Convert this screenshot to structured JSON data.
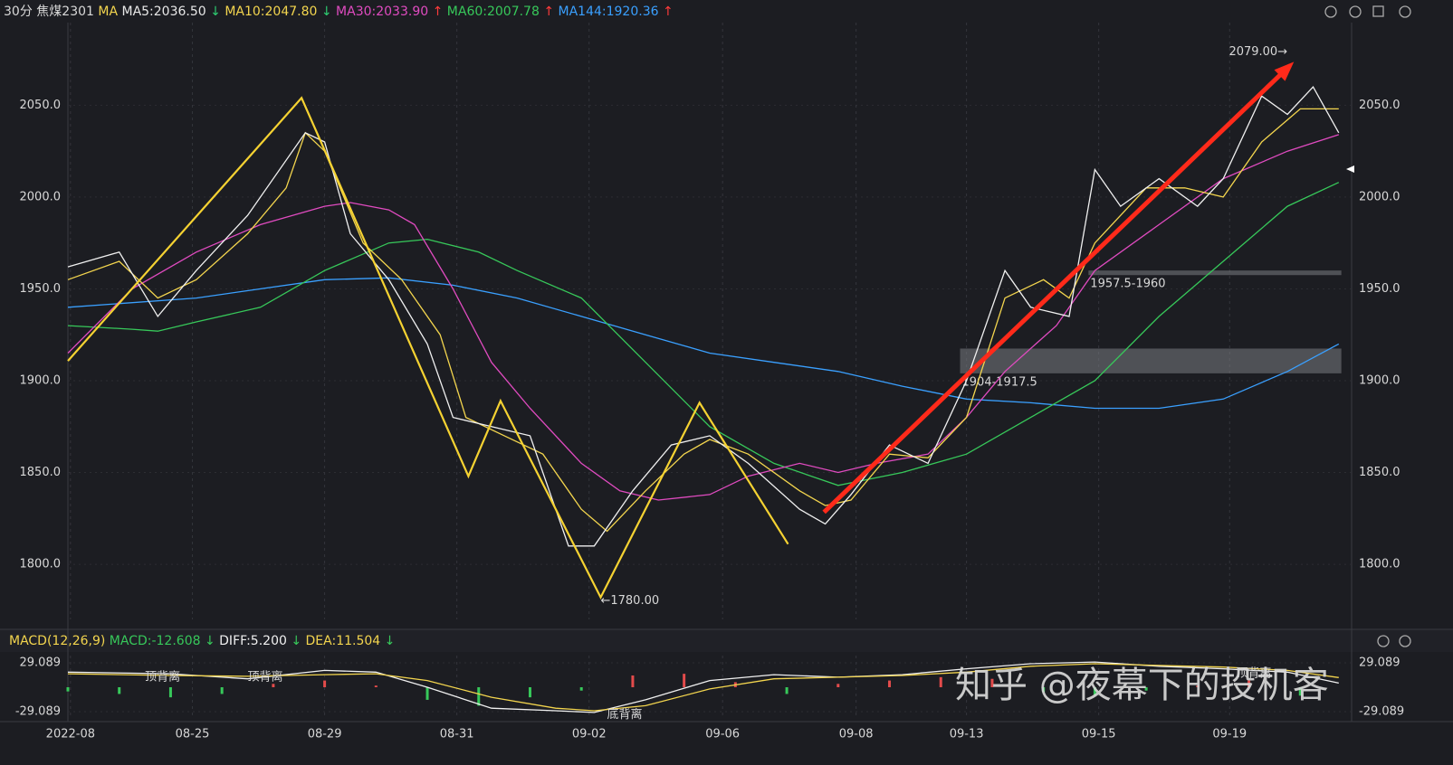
{
  "header": {
    "period": "30分",
    "symbol": "焦煤2301",
    "ma_label": "MA",
    "items": [
      {
        "label": "MA5:2036.50",
        "arrow": "↓",
        "color": "#e8e8e8",
        "arrow_color": "#2ecc71"
      },
      {
        "label": "MA10:2047.80",
        "arrow": "↓",
        "color": "#f3d54e",
        "arrow_color": "#2ecc71"
      },
      {
        "label": "MA30:2033.90",
        "arrow": "↑",
        "color": "#e04bc0",
        "arrow_color": "#ff3b3b"
      },
      {
        "label": "MA60:2007.78",
        "arrow": "↑",
        "color": "#37c85a",
        "arrow_color": "#ff3b3b"
      },
      {
        "label": "MA144:1920.36",
        "arrow": "↑",
        "color": "#3aa0ff",
        "arrow_color": "#ff3b3b"
      }
    ]
  },
  "watermark": "知乎 @夜幕下的投机客",
  "chart_data": [
    {
      "type": "line",
      "ylim": [
        1770,
        2095
      ],
      "xlim": [
        0,
        100
      ],
      "yticks": [
        {
          "value": 1800,
          "label": "1800.0"
        },
        {
          "value": 1850,
          "label": "1850.0"
        },
        {
          "value": 1900,
          "label": "1900.0"
        },
        {
          "value": 1950,
          "label": "1950.0"
        },
        {
          "value": 2000,
          "label": "2000.0"
        },
        {
          "value": 2050,
          "label": "2050.0"
        }
      ],
      "xticks": [
        {
          "value": 0.2,
          "label": "2022-08"
        },
        {
          "value": 9.7,
          "label": "08-25"
        },
        {
          "value": 20,
          "label": "08-29"
        },
        {
          "value": 30.3,
          "label": "08-31"
        },
        {
          "value": 40.6,
          "label": "09-02"
        },
        {
          "value": 51,
          "label": "09-06"
        },
        {
          "value": 61.4,
          "label": "09-08"
        },
        {
          "value": 70,
          "label": "09-13"
        },
        {
          "value": 80.3,
          "label": "09-15"
        },
        {
          "value": 90.5,
          "label": "09-19"
        }
      ],
      "series": [
        {
          "name": "MA144",
          "color": "#3aa0ff",
          "x": [
            0,
            10,
            20,
            25,
            30,
            35,
            40,
            45,
            50,
            55,
            60,
            65,
            70,
            75,
            80,
            85,
            90,
            95,
            99
          ],
          "values": [
            1940,
            1945,
            1955,
            1956,
            1952,
            1945,
            1935,
            1925,
            1915,
            1910,
            1905,
            1897,
            1890,
            1888,
            1885,
            1885,
            1890,
            1905,
            1920
          ]
        },
        {
          "name": "MA60",
          "color": "#37c85a",
          "x": [
            0,
            5,
            7,
            10,
            15,
            20,
            25,
            28,
            32,
            35,
            40,
            45,
            50,
            55,
            60,
            65,
            70,
            75,
            80,
            85,
            90,
            95,
            99
          ],
          "values": [
            1930,
            1928,
            1927,
            1932,
            1940,
            1960,
            1975,
            1977,
            1970,
            1960,
            1945,
            1910,
            1875,
            1855,
            1843,
            1850,
            1860,
            1880,
            1900,
            1935,
            1965,
            1995,
            2008
          ]
        },
        {
          "name": "MA30",
          "color": "#e04bc0",
          "x": [
            0,
            5,
            10,
            15,
            20,
            22,
            25,
            27,
            30,
            33,
            36,
            40,
            43,
            46,
            50,
            53,
            57,
            60,
            63,
            67,
            70,
            73,
            77,
            80,
            85,
            90,
            95,
            99
          ],
          "values": [
            1915,
            1950,
            1970,
            1985,
            1995,
            1997,
            1993,
            1985,
            1950,
            1910,
            1885,
            1855,
            1840,
            1835,
            1838,
            1848,
            1855,
            1850,
            1855,
            1860,
            1880,
            1905,
            1930,
            1960,
            1985,
            2010,
            2025,
            2034
          ]
        },
        {
          "name": "MA10",
          "color": "#f3d54e",
          "x": [
            0,
            4,
            7,
            10,
            14,
            17,
            18.5,
            20,
            23,
            26,
            29,
            31,
            34,
            37,
            40,
            42,
            45,
            48,
            50,
            53,
            57,
            59,
            61,
            64,
            67,
            70,
            73,
            76,
            78,
            80,
            84,
            87,
            90,
            93,
            96,
            99
          ],
          "values": [
            1955,
            1965,
            1945,
            1955,
            1980,
            2005,
            2035,
            2025,
            1975,
            1955,
            1925,
            1880,
            1870,
            1860,
            1830,
            1818,
            1840,
            1860,
            1868,
            1860,
            1840,
            1832,
            1835,
            1860,
            1858,
            1880,
            1945,
            1955,
            1945,
            1975,
            2005,
            2005,
            2000,
            2030,
            2048,
            2048
          ]
        },
        {
          "name": "MA5",
          "color": "#f0f0f0",
          "x": [
            0,
            4,
            7,
            10,
            14,
            18.5,
            20,
            22,
            25,
            28,
            30,
            33,
            36,
            39,
            41,
            44,
            47,
            50,
            53,
            57,
            59,
            61,
            64,
            67,
            70,
            73,
            75,
            78,
            80,
            82,
            85,
            88,
            90,
            93,
            95,
            97,
            99
          ],
          "values": [
            1962,
            1970,
            1935,
            1960,
            1990,
            2035,
            2030,
            1980,
            1955,
            1920,
            1880,
            1875,
            1870,
            1810,
            1810,
            1840,
            1865,
            1870,
            1855,
            1830,
            1822,
            1838,
            1865,
            1855,
            1900,
            1960,
            1940,
            1935,
            2015,
            1995,
            2010,
            1995,
            2010,
            2055,
            2045,
            2060,
            2035
          ]
        }
      ],
      "zigzag": {
        "color": "#f5d232",
        "x": [
          0,
          18.2,
          31.2,
          33.7,
          41.5,
          49.2,
          56.1
        ],
        "values": [
          1910.8,
          2054,
          1848,
          1889,
          1782,
          1888,
          1811
        ]
      },
      "arrow": {
        "color": "#ff2a1a",
        "x": [
          58.9,
          95.2
        ],
        "values": [
          1828.4,
          2071.6
        ]
      },
      "zones": [
        {
          "label": "1904-1917.5",
          "x": [
            69.5,
            99.2
          ],
          "values": [
            1904,
            1917.5
          ]
        },
        {
          "label": "1957.5-1960",
          "x": [
            79.5,
            99.2
          ],
          "values": [
            1957.5,
            1960
          ]
        }
      ],
      "annotations": [
        {
          "text": "2079.00→",
          "x": 95,
          "value": 2079
        },
        {
          "text": "←1780.00",
          "x": 41.5,
          "value": 1780
        }
      ]
    },
    {
      "type": "macd",
      "title": "MACD(12,26,9)",
      "macd_label": "MACD:-12.608",
      "macd_arrow": "↓",
      "diff_label": "DIFF:5.200",
      "diff_arrow": "↓",
      "dea_label": "DEA:11.504",
      "dea_arrow": "↓",
      "ylim": [
        -37.7,
        37.7
      ],
      "xlim": [
        0,
        100
      ],
      "yticks": [
        -29.089,
        29.089
      ],
      "histogram": {
        "x": [
          0,
          4,
          8,
          12,
          16,
          20,
          24,
          28,
          32,
          36,
          40,
          44,
          48,
          52,
          56,
          60,
          64,
          68,
          72,
          76,
          80,
          84,
          88,
          92,
          96
        ],
        "values": [
          -5,
          -8,
          -12,
          -8,
          4,
          8,
          2,
          -15,
          -22,
          -12,
          -4,
          14,
          16,
          6,
          -8,
          4,
          8,
          12,
          10,
          -6,
          -10,
          -4,
          2,
          8,
          -10
        ]
      },
      "series": [
        {
          "name": "DIFF",
          "color": "#f0f0f0",
          "x": [
            0,
            8,
            14,
            20,
            24,
            28,
            33,
            38,
            41,
            45,
            50,
            55,
            60,
            65,
            70,
            75,
            80,
            85,
            90,
            95,
            99
          ],
          "values": [
            18,
            16,
            10,
            20,
            18,
            0,
            -25,
            -28,
            -30,
            -15,
            8,
            15,
            12,
            15,
            22,
            28,
            30,
            25,
            22,
            18,
            5
          ]
        },
        {
          "name": "DEA",
          "color": "#f3d54e",
          "x": [
            0,
            8,
            14,
            20,
            24,
            28,
            33,
            38,
            41,
            45,
            50,
            55,
            60,
            65,
            70,
            75,
            80,
            85,
            90,
            95,
            99
          ],
          "values": [
            16,
            14,
            13,
            15,
            16,
            8,
            -12,
            -25,
            -28,
            -22,
            -2,
            10,
            12,
            14,
            18,
            25,
            28,
            26,
            24,
            20,
            11.5
          ]
        }
      ],
      "annotations": [
        {
          "text": "顶背离",
          "x": 6,
          "value": 12,
          "color": "#37c85a"
        },
        {
          "text": "顶背离",
          "x": 14,
          "value": 12,
          "color": "#37c85a"
        },
        {
          "text": "底背离",
          "x": 42,
          "value": -33,
          "color": "#ff3b3b"
        },
        {
          "text": "顶背离",
          "x": 91,
          "value": 16,
          "color": "#37c85a"
        }
      ]
    }
  ]
}
